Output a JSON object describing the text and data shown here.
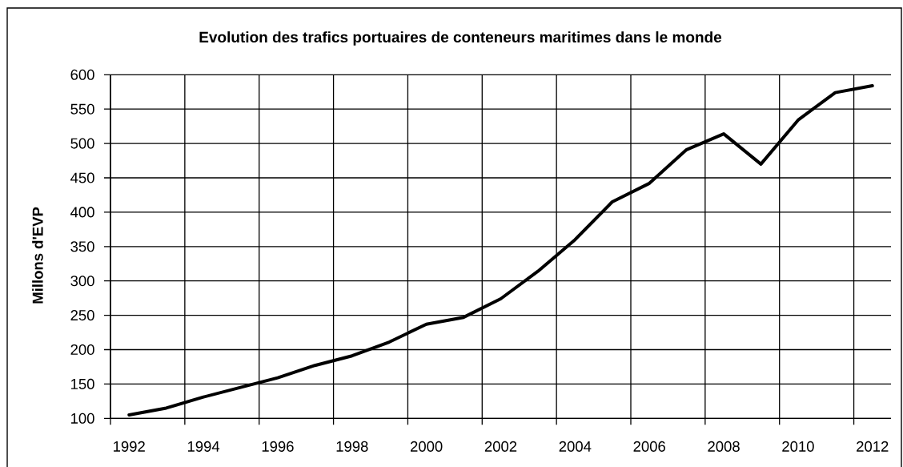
{
  "chart_data": {
    "type": "line",
    "title": "Evolution des trafics portuaires de conteneurs maritimes dans le monde",
    "ylabel": "Millons d'EVP",
    "categories": [
      "1992",
      null,
      "1994",
      null,
      "1996",
      null,
      "1998",
      null,
      "2000",
      null,
      "2002",
      null,
      "2004",
      null,
      "2006",
      null,
      "2008",
      null,
      "2010",
      null,
      "2012"
    ],
    "series": [
      {
        "color": "#000000",
        "values": [
          105,
          115,
          131,
          145,
          159,
          177,
          191,
          211,
          237,
          247,
          274,
          314,
          360,
          415,
          442,
          491,
          514,
          470,
          534,
          574,
          584
        ]
      }
    ],
    "ylim": [
      100,
      600
    ],
    "yticks": [
      100,
      150,
      200,
      250,
      300,
      350,
      400,
      450,
      500,
      550,
      600
    ],
    "grid": true
  }
}
